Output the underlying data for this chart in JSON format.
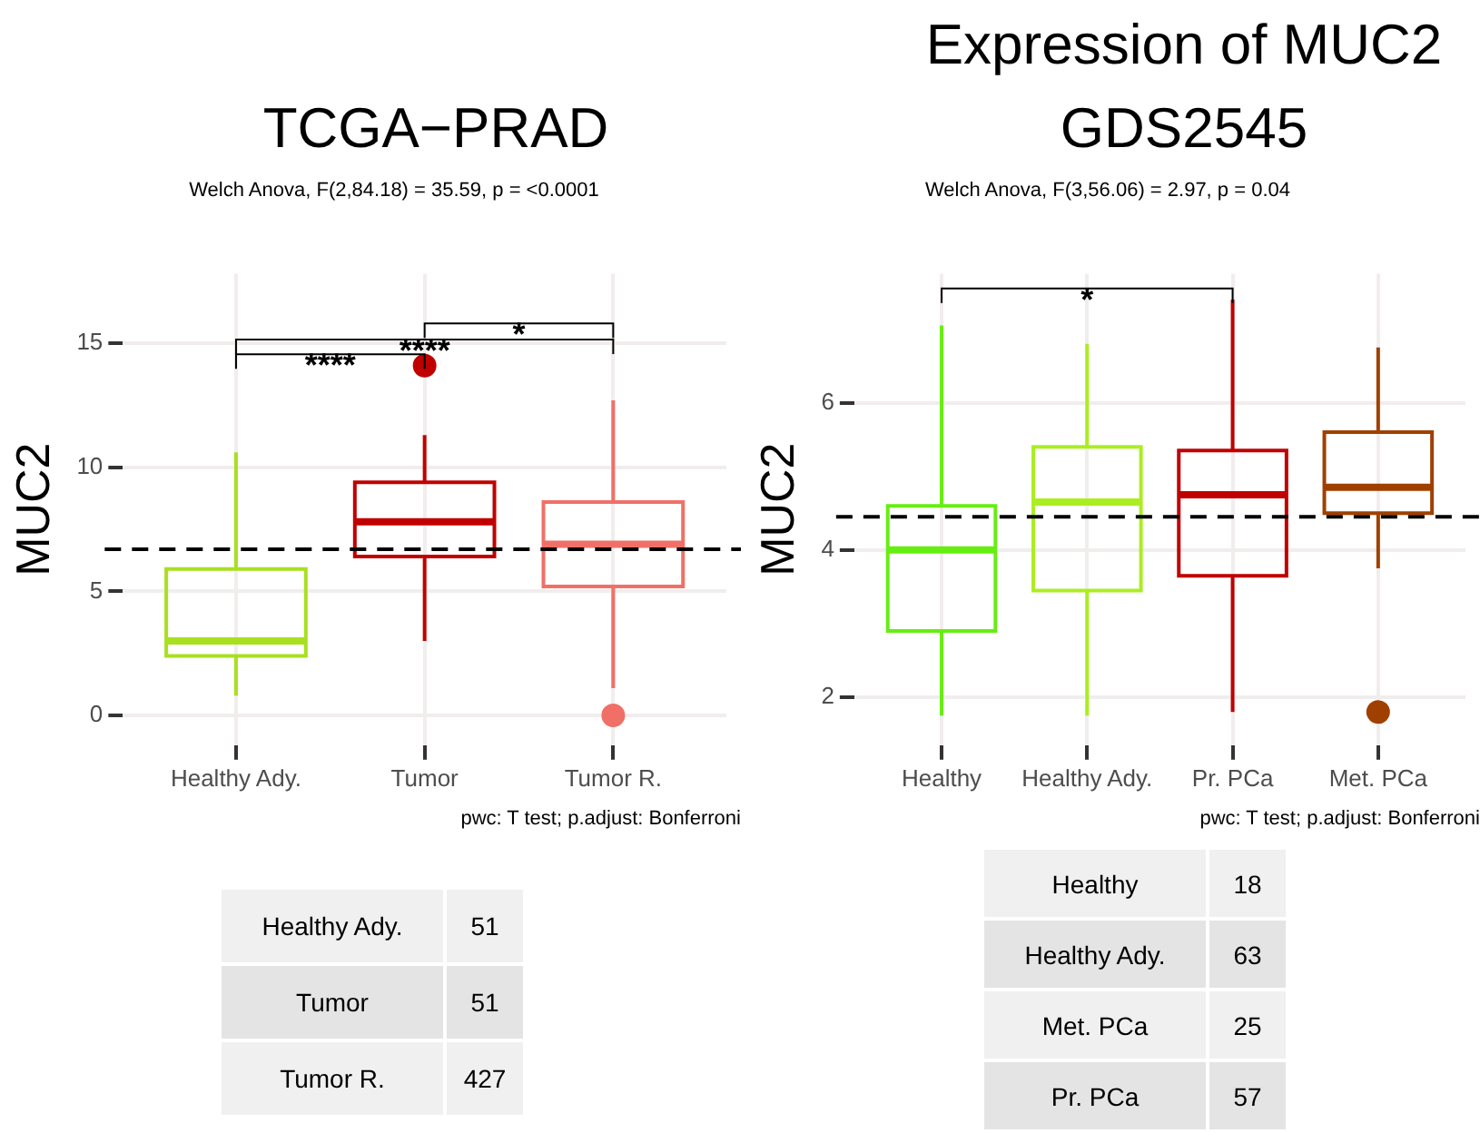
{
  "chart_data": [
    {
      "type": "box",
      "title": "TCGA−PRAD",
      "subtitle": "Welch Anova, F(2,84.18) = 35.59, p = <0.0001",
      "ylabel": "MUC2",
      "categories": [
        "Healthy Ady.",
        "Tumor",
        "Tumor R."
      ],
      "colors": [
        "#a8e020",
        "#c00000",
        "#f07068"
      ],
      "boxes": [
        {
          "low": 0.8,
          "q1": 2.4,
          "median": 3.0,
          "q3": 5.9,
          "high": 10.6
        },
        {
          "low": 3.0,
          "q1": 6.4,
          "median": 7.8,
          "q3": 9.4,
          "high": 11.3,
          "outliers": [
            14.1
          ]
        },
        {
          "low": 1.1,
          "q1": 5.2,
          "median": 6.9,
          "q3": 8.6,
          "high": 12.7,
          "outliers": [
            0
          ]
        }
      ],
      "ylim": [
        -1.2,
        17.8
      ],
      "yticks": [
        0,
        5,
        10,
        15
      ],
      "grid": true,
      "ref_lines": [
        {
          "axis": "y",
          "value": 6.7,
          "color": "#000000",
          "line_style": "dashed"
        }
      ],
      "annotations": [
        "****",
        "****",
        "*",
        "pwc: T test; p.adjust: Bonferroni"
      ]
    },
    {
      "type": "box",
      "title": "Expression of MUC2\nGDS2545",
      "subtitle": "Welch Anova, F(3,56.06) = 2.97, p = 0.04",
      "ylabel": "MUC2",
      "categories": [
        "Healthy",
        "Healthy Ady.",
        "Pr. PCa",
        "Met. PCa"
      ],
      "colors": [
        "#66ee11",
        "#aaee22",
        "#c00000",
        "#a04000"
      ],
      "boxes": [
        {
          "low": 1.75,
          "q1": 2.9,
          "median": 4.0,
          "q3": 4.6,
          "high": 7.05
        },
        {
          "low": 1.75,
          "q1": 3.45,
          "median": 4.65,
          "q3": 5.4,
          "high": 6.8
        },
        {
          "low": 1.8,
          "q1": 3.65,
          "median": 4.75,
          "q3": 5.35,
          "high": 7.4
        },
        {
          "low": 3.75,
          "q1": 4.5,
          "median": 4.85,
          "q3": 5.6,
          "high": 6.75,
          "outliers": [
            1.8
          ]
        }
      ],
      "ylim": [
        1.35,
        7.75
      ],
      "yticks": [
        2,
        4,
        6
      ],
      "grid": true,
      "ref_lines": [
        {
          "axis": "y",
          "value": 4.45,
          "color": "#000000",
          "line_style": "dashed"
        }
      ],
      "annotations": [
        "*",
        "pwc: T test; p.adjust: Bonferroni"
      ]
    },
    {
      "type": "other",
      "categories": [
        "Healthy Ady.",
        "Tumor",
        "Tumor R."
      ],
      "values": [
        51,
        51,
        427
      ],
      "data_labels": true
    },
    {
      "type": "other",
      "categories": [
        "Healthy",
        "Healthy Ady.",
        "Met. PCa",
        "Pr. PCa"
      ],
      "values": [
        18,
        63,
        25,
        57
      ],
      "data_labels": true
    }
  ]
}
